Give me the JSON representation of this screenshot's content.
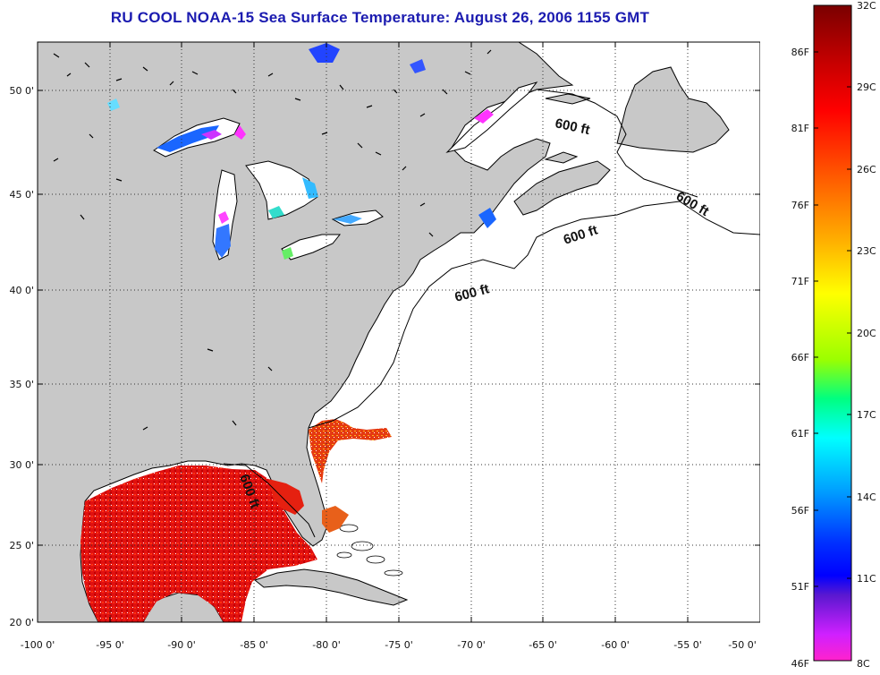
{
  "title": "RU COOL  NOAA-15  Sea Surface Temperature:  August 26, 2006 1155 GMT",
  "map": {
    "lon_range": [
      -100,
      -50
    ],
    "lat_range": [
      20,
      52.5
    ],
    "lon_ticks": [
      "-100 0'",
      "-95 0'",
      "-90 0'",
      "-85 0'",
      "-80 0'",
      "-75 0'",
      "-70 0'",
      "-65 0'",
      "-60 0'",
      "-55 0'",
      "-50 0'"
    ],
    "lat_ticks": [
      "20 0'",
      "25 0'",
      "30 0'",
      "35 0'",
      "40 0'",
      "45 0'",
      "50 0'"
    ],
    "grid": "dotted",
    "land_color": "#c8c8c8",
    "water_color": "#ffffff",
    "depth_contour_labels": [
      "600 ft",
      "600 ft",
      "600 ft",
      "600 ft",
      "600 ft"
    ]
  },
  "colorbar": {
    "celsius_labels": [
      "32C",
      "29C",
      "26C",
      "23C",
      "20C",
      "17C",
      "14C",
      "11C",
      "8C"
    ],
    "fahrenheit_labels": [
      "86F",
      "81F",
      "76F",
      "71F",
      "66F",
      "61F",
      "56F",
      "51F",
      "46F"
    ],
    "colors": [
      "#8b0000",
      "#ff0000",
      "#ff8c00",
      "#ffff00",
      "#7fff00",
      "#00ffff",
      "#0066ff",
      "#0000ff",
      "#ff00ff"
    ]
  },
  "legend_scale": {
    "min_c": 8,
    "max_c": 32
  }
}
